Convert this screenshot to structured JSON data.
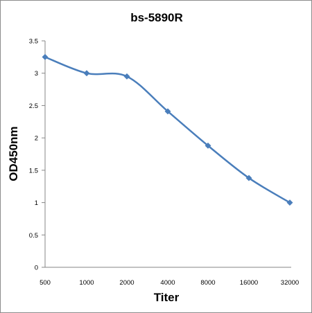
{
  "chart_data": {
    "type": "line",
    "title": "bs-5890R",
    "xlabel": "Titer",
    "ylabel": "OD450nm",
    "categories": [
      "500",
      "1000",
      "2000",
      "4000",
      "8000",
      "16000",
      "32000"
    ],
    "series": [
      {
        "values": [
          3.25,
          3.0,
          2.95,
          2.41,
          1.88,
          1.38,
          1.0
        ]
      }
    ],
    "ylim": [
      0,
      3.5
    ],
    "yticks": [
      "0",
      "0.5",
      "1",
      "1.5",
      "2",
      "2.5",
      "3",
      "3.5"
    ],
    "grid": false,
    "legend": "none",
    "colors": {
      "series": "#4a7ebb",
      "axis": "#868686"
    }
  }
}
